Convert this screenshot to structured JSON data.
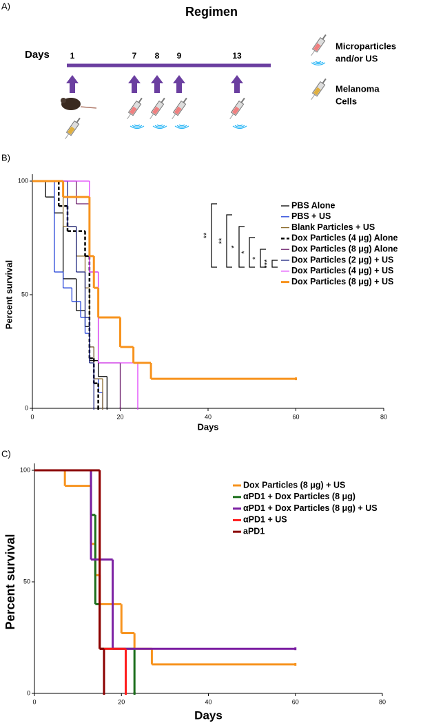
{
  "regimen": {
    "label": "A)",
    "title": "Regimen",
    "days_label": "Days",
    "days": [
      1,
      7,
      8,
      9,
      13
    ],
    "legend": [
      [
        "Microparticles",
        "and/or US"
      ],
      [
        "Melanoma",
        "Cells"
      ]
    ]
  },
  "chart_data": [
    {
      "type": "step",
      "label": "B)",
      "xlabel": "Days",
      "ylabel": "Percent survival",
      "xlim": [
        0,
        80
      ],
      "xticks": [
        0,
        20,
        40,
        60,
        80
      ],
      "ylim": [
        0,
        100
      ],
      "yticks": [
        0,
        50,
        100
      ],
      "significance": [
        "**",
        "**",
        "*",
        "*",
        "*",
        "***"
      ],
      "series": [
        {
          "name": "PBS Alone",
          "color": "#000000",
          "style": "thin",
          "x": [
            0,
            3,
            5,
            7,
            10,
            12,
            13,
            15,
            17
          ],
          "values": [
            100,
            93,
            86,
            57,
            43,
            36,
            21,
            14,
            0
          ]
        },
        {
          "name": "PBS + US",
          "color": "#2040d8",
          "style": "thin",
          "x": [
            0,
            5,
            7,
            9,
            11,
            12,
            13,
            14,
            15,
            16
          ],
          "values": [
            100,
            60,
            53,
            47,
            40,
            33,
            27,
            13,
            7,
            0
          ]
        },
        {
          "name": "Blank Particles + US",
          "color": "#8b6a2b",
          "style": "thin",
          "x": [
            0,
            7,
            10,
            12,
            13,
            14,
            16
          ],
          "values": [
            100,
            80,
            67,
            53,
            27,
            13,
            0
          ]
        },
        {
          "name": "Dox Particles (4 μg) Alone",
          "color": "#000000",
          "style": "dashed",
          "x": [
            0,
            6,
            8,
            12,
            13,
            14,
            15
          ],
          "values": [
            100,
            89,
            78,
            67,
            22,
            11,
            0
          ]
        },
        {
          "name": "Dox Particles (8 μg) Alone",
          "color": "#6a1b6a",
          "style": "thin",
          "x": [
            0,
            10,
            13,
            15,
            20
          ],
          "values": [
            100,
            90,
            60,
            20,
            0
          ]
        },
        {
          "name": "Dox Particles (2 μg) + US",
          "color": "#1a237e",
          "style": "thin",
          "x": [
            0,
            8,
            10,
            12,
            13,
            14
          ],
          "values": [
            100,
            80,
            60,
            40,
            20,
            0
          ]
        },
        {
          "name": "Dox Particles (4 μg) + US",
          "color": "#e040fb",
          "style": "thin",
          "x": [
            0,
            13,
            15,
            24
          ],
          "values": [
            100,
            60,
            20,
            0
          ]
        },
        {
          "name": "Dox Particles (8 μg) + US",
          "color": "#f7931e",
          "style": "thick",
          "x": [
            0,
            7,
            13,
            14,
            15,
            20,
            23,
            27,
            60
          ],
          "values": [
            100,
            93,
            67,
            53,
            40,
            27,
            20,
            13,
            13
          ]
        }
      ]
    },
    {
      "type": "step",
      "label": "C)",
      "xlabel": "Days",
      "ylabel": "Percent survival",
      "xlim": [
        0,
        80
      ],
      "xticks": [
        0,
        20,
        40,
        60,
        80
      ],
      "ylim": [
        0,
        100
      ],
      "yticks": [
        0,
        50,
        100
      ],
      "series": [
        {
          "name": "Dox Particles (8 μg) + US",
          "color": "#f7931e",
          "style": "thick",
          "x": [
            0,
            7,
            13,
            14,
            15,
            20,
            23,
            27,
            60
          ],
          "values": [
            100,
            93,
            67,
            53,
            40,
            27,
            20,
            13,
            13
          ]
        },
        {
          "name": "αPD1 + Dox Particles (8 μg)",
          "color": "#1b6e1b",
          "style": "thick",
          "x": [
            0,
            13,
            14,
            15,
            23
          ],
          "values": [
            100,
            80,
            40,
            20,
            0
          ]
        },
        {
          "name": "αPD1 + Dox Particles (8 μg) + US",
          "color": "#7b1fa2",
          "style": "thick",
          "x": [
            0,
            13,
            18,
            60
          ],
          "values": [
            100,
            60,
            20,
            20
          ]
        },
        {
          "name": "αPD1 + US",
          "color": "#ff1a1a",
          "style": "thick",
          "x": [
            0,
            15,
            21
          ],
          "values": [
            100,
            20,
            0
          ]
        },
        {
          "name": "aPD1",
          "color": "#8b0000",
          "style": "thick",
          "x": [
            0,
            15,
            16
          ],
          "values": [
            100,
            20,
            0
          ]
        }
      ]
    }
  ]
}
